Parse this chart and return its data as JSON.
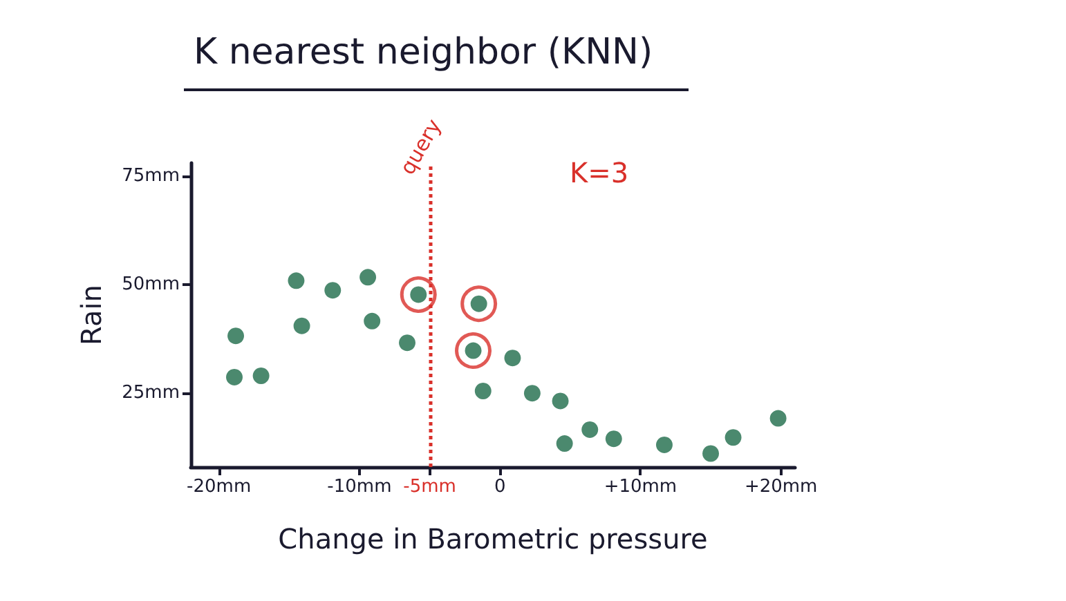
{
  "chart_data": {
    "type": "scatter",
    "title": "K nearest neighbor (KNN)",
    "xlabel": "Change in Barometric pressure",
    "ylabel": "Rain",
    "xlim": [
      -22,
      21
    ],
    "ylim": [
      8,
      78
    ],
    "xticks": [
      {
        "value": -20,
        "label": "-20mm"
      },
      {
        "value": -10,
        "label": "-10mm"
      },
      {
        "value": -5,
        "label": "-5mm"
      },
      0,
      {
        "value": 10,
        "label": "+10mm"
      },
      {
        "value": 20,
        "label": "+20mm"
      }
    ],
    "yticks": [
      {
        "value": 25,
        "label": "25mm"
      },
      {
        "value": 50,
        "label": "50mm"
      },
      {
        "value": 75,
        "label": "75mm"
      }
    ],
    "grid": false,
    "marker": "circle",
    "series": [
      {
        "color": "#1e6b4a",
        "x": [
          -18.9,
          -18.8,
          -17.0,
          -14.5,
          -14.1,
          -11.9,
          -9.4,
          -9.1,
          -6.6,
          -5.8,
          -1.5,
          -1.9,
          0.9,
          -1.2,
          2.3,
          4.3,
          4.6,
          6.4,
          8.1,
          11.7,
          15.0,
          16.6,
          19.8
        ],
        "values": [
          28.7,
          38.2,
          29.0,
          50.9,
          40.5,
          48.7,
          51.7,
          41.6,
          36.6,
          47.7,
          45.6,
          34.8,
          33.1,
          25.5,
          25.0,
          23.2,
          13.4,
          16.6,
          14.5,
          13.1,
          11.1,
          14.8,
          19.2
        ]
      },
      {
        "color": "#d9302a",
        "x": [
          -5.8,
          -1.5,
          -1.9
        ],
        "values": [
          47.7,
          45.6,
          34.8
        ]
      }
    ],
    "ref_lines": [
      {
        "axis": "x",
        "value": -5,
        "label": "query",
        "color": "#d9302a",
        "line_style": "dotted"
      }
    ],
    "annotations": [
      "K=3"
    ]
  }
}
